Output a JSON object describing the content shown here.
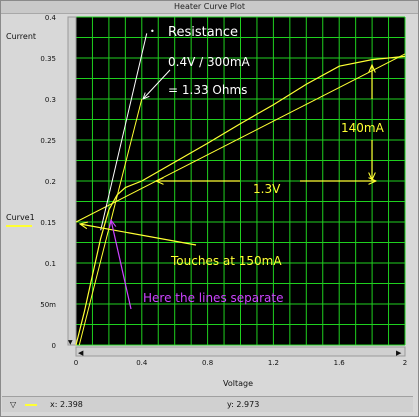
{
  "window": {
    "title": "Heater Curve Plot"
  },
  "side": {
    "ylabel": "Current",
    "legend": "Curve1"
  },
  "status": {
    "icon": "down-triangle-icon",
    "x_readout": "x: 2.398",
    "y_readout": "y: 2.973"
  },
  "colors": {
    "plot_bg": "#000000",
    "grid": "#1fd01f",
    "curve": "#ffff33",
    "annotation_white": "#ffffff",
    "annotation_yellow": "#ffff33",
    "annotation_purple": "#cc44ff"
  },
  "chart_data": {
    "type": "line",
    "title": "",
    "xlabel": "Voltage",
    "ylabel": "Current",
    "xlim": [
      0,
      2
    ],
    "ylim": [
      0,
      0.4
    ],
    "x_ticks": [
      0,
      0.4,
      0.8,
      1.2,
      1.6,
      2
    ],
    "x_tick_labels": [
      "0",
      "0.4",
      "0.8",
      "1.2",
      "1.6",
      "2"
    ],
    "y_ticks": [
      0,
      0.05,
      0.1,
      0.15,
      0.2,
      0.25,
      0.3,
      0.35,
      0.4
    ],
    "y_tick_labels": [
      "0",
      "50m",
      "0.1",
      "0.15",
      "0.2",
      "0.25",
      "0.3",
      "0.35",
      "0.4"
    ],
    "grid": true,
    "legend": "left",
    "series": [
      {
        "name": "Curve1",
        "x": [
          0,
          0.05,
          0.1,
          0.15,
          0.2,
          0.25,
          0.3,
          0.4,
          0.6,
          0.8,
          1.0,
          1.2,
          1.4,
          1.6,
          1.8,
          2.0
        ],
        "y": [
          0,
          0.04,
          0.085,
          0.13,
          0.165,
          0.183,
          0.192,
          0.2,
          0.223,
          0.246,
          0.27,
          0.293,
          0.318,
          0.34,
          0.348,
          0.352
        ]
      }
    ],
    "annotations": {
      "resistance_title": "Resistance",
      "resistance_calc": "0.4V / 300mA",
      "resistance_result": "= 1.33 Ohms",
      "delta_current": "140mA",
      "delta_voltage": "1.3V",
      "touch_note": "Touches at 150mA",
      "separate_note": "Here the lines separate"
    }
  }
}
